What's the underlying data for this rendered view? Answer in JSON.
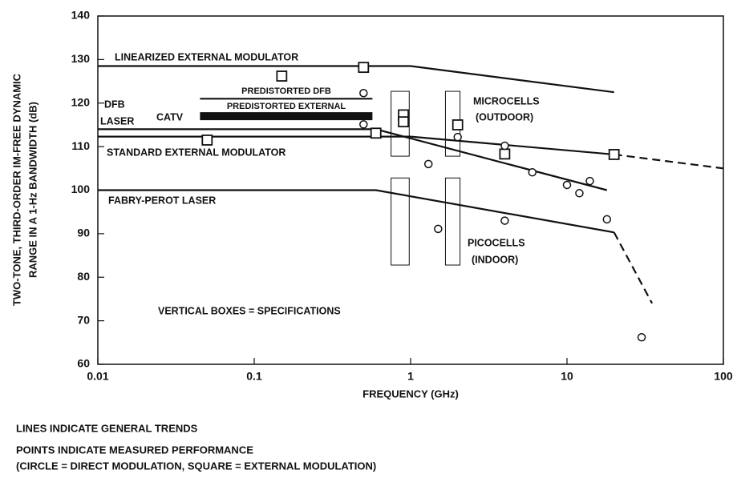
{
  "chart_data": {
    "type": "line",
    "x_label": "FREQUENCY (GHz)",
    "y_label": [
      "TWO-TONE, THIRD-ORDER IM-FREE DYNAMIC",
      "RANGE IN A 1-Hz BANDWIDTH (dB)"
    ],
    "log_x": true,
    "xlim": [
      0.01,
      100
    ],
    "xticks": [
      0.01,
      0.1,
      1,
      10,
      100
    ],
    "ylim": [
      60,
      140
    ],
    "yticks": [
      60,
      70,
      80,
      90,
      100,
      110,
      120,
      130,
      140
    ],
    "color": "#111111",
    "series": [
      {
        "style": "solid",
        "x": [
          0.01,
          1,
          20
        ],
        "values": [
          128.5,
          128.5,
          122.5
        ]
      },
      {
        "style": "solid",
        "x": [
          0.01,
          1,
          20
        ],
        "values": [
          112.3,
          112.3,
          108.2
        ]
      },
      {
        "style": "dashed",
        "x": [
          20,
          100
        ],
        "values": [
          108.2,
          105
        ]
      },
      {
        "style": "solid",
        "x": [
          0.01,
          0.6,
          18
        ],
        "values": [
          114,
          114,
          100
        ]
      },
      {
        "style": "solid",
        "x": [
          0.01,
          0.6,
          20
        ],
        "values": [
          100,
          100,
          90.3
        ]
      },
      {
        "style": "dashed",
        "x": [
          20,
          35
        ],
        "values": [
          90.3,
          74
        ]
      },
      {
        "style": "solid",
        "x": [
          0.045,
          0.57
        ],
        "values": [
          121,
          121
        ]
      },
      {
        "style": "thick",
        "x": [
          0.045,
          0.57
        ],
        "values": [
          117,
          117
        ]
      }
    ],
    "points": [
      {
        "marker": "square",
        "x": [
          0.05,
          0.15,
          0.5,
          0.6,
          0.9,
          0.9,
          2,
          4,
          20
        ],
        "values": [
          111.5,
          126.2,
          128.2,
          113.1,
          117.3,
          115.7,
          115,
          108.3,
          108.2
        ]
      },
      {
        "marker": "circle",
        "x": [
          0.5,
          0.5,
          1.3,
          1.5,
          2,
          4,
          4,
          6,
          10,
          12,
          14,
          18,
          30
        ],
        "values": [
          122.3,
          115.1,
          106,
          91.1,
          112.2,
          110.2,
          93,
          104.1,
          101.2,
          99.3,
          102.1,
          93.3,
          66.2
        ]
      }
    ],
    "spec_boxes": [
      {
        "x": [
          0.75,
          0.98
        ],
        "y": [
          107.8,
          122.7
        ]
      },
      {
        "x": [
          0.75,
          0.98
        ],
        "y": [
          82.8,
          102.8
        ]
      },
      {
        "x": [
          1.67,
          2.07
        ],
        "y": [
          107.8,
          122.7
        ]
      },
      {
        "x": [
          1.67,
          2.07
        ],
        "y": [
          82.8,
          102.8
        ]
      }
    ],
    "annotations": [
      "LINEARIZED EXTERNAL MODULATOR",
      "PREDISTORTED DFB",
      "PREDISTORTED EXTERNAL",
      "DFB",
      "LASER",
      "CATV",
      "STANDARD EXTERNAL MODULATOR",
      "FABRY-PEROT LASER",
      "MICROCELLS",
      "(OUTDOOR)",
      "PICOCELLS",
      "(INDOOR)",
      "VERTICAL BOXES = SPECIFICATIONS"
    ],
    "notes": [
      "LINES INDICATE GENERAL TRENDS",
      "POINTS INDICATE MEASURED PERFORMANCE",
      "(CIRCLE = DIRECT MODULATION, SQUARE = EXTERNAL MODULATION)"
    ]
  }
}
